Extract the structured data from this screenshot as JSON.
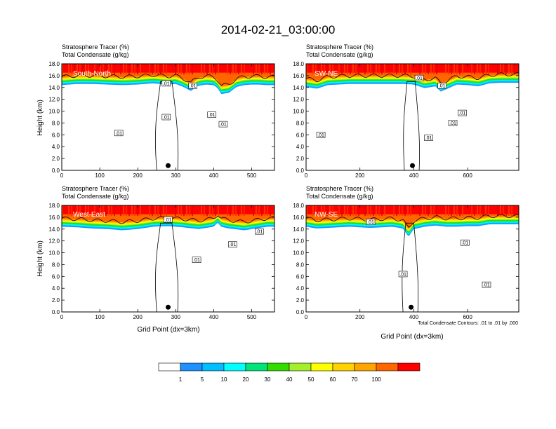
{
  "title": "2014-02-21_03:00:00",
  "chart_data": [
    {
      "type": "heatmap",
      "panel": "South-North",
      "subtitle_line1": "Stratosphere Tracer   (%)",
      "subtitle_line2": "Total Condensate   (g/kg)",
      "ylabel": "Height (km)",
      "xlabel": "",
      "xlim": [
        0,
        560
      ],
      "ylim": [
        0,
        18
      ],
      "xticks": [
        0,
        100,
        200,
        300,
        400,
        500
      ],
      "yticks": [
        "0.0",
        "2.0",
        "4.0",
        "6.0",
        "8.0",
        "10.0",
        "12.0",
        "14.0",
        "16.0",
        "18.0"
      ],
      "marker_x": 280,
      "tracer_profile": {
        "x": [
          0,
          40,
          80,
          120,
          160,
          200,
          240,
          260,
          280,
          300,
          320,
          340,
          350,
          360,
          380,
          400,
          410,
          420,
          440,
          460,
          480,
          500,
          520,
          540,
          560
        ],
        "y": [
          14.9,
          15.1,
          15.1,
          15.0,
          14.9,
          15.0,
          15.2,
          15.1,
          15.0,
          15.1,
          14.6,
          13.9,
          14.4,
          14.8,
          15.0,
          14.9,
          14.4,
          13.4,
          13.6,
          14.6,
          14.9,
          15.0,
          15.0,
          14.9,
          14.9
        ]
      },
      "contour_labels": [
        {
          "x": 150,
          "y": 6.3,
          "text": ".01"
        },
        {
          "x": 275,
          "y": 14.7,
          "text": ".01"
        },
        {
          "x": 345,
          "y": 14.3,
          "text": ".01"
        },
        {
          "x": 275,
          "y": 9.0,
          "text": ".01"
        },
        {
          "x": 395,
          "y": 9.4,
          "text": ".01"
        },
        {
          "x": 425,
          "y": 7.8,
          "text": ".01"
        }
      ]
    },
    {
      "type": "heatmap",
      "panel": "SW-NE",
      "subtitle_line1": "Stratosphere Tracer   (%)",
      "subtitle_line2": "Total Condensate   (g/kg)",
      "ylabel": "",
      "xlabel": "",
      "xlim": [
        0,
        790
      ],
      "ylim": [
        0,
        18
      ],
      "xticks": [
        0,
        200,
        400,
        600
      ],
      "yticks": [
        "0.0",
        "2.0",
        "4.0",
        "6.0",
        "8.0",
        "10.0",
        "12.0",
        "14.0",
        "16.0",
        "18.0"
      ],
      "marker_x": 395,
      "tracer_profile": {
        "x": [
          0,
          40,
          80,
          160,
          240,
          320,
          360,
          400,
          440,
          480,
          500,
          520,
          560,
          600,
          640,
          680,
          720,
          760,
          790
        ],
        "y": [
          14.6,
          14.3,
          14.9,
          15.1,
          15.1,
          15.1,
          15.1,
          15.0,
          14.4,
          14.7,
          13.8,
          14.2,
          15.0,
          14.9,
          14.7,
          15.2,
          15.3,
          15.3,
          15.3
        ]
      },
      "contour_labels": [
        {
          "x": 420,
          "y": 15.6,
          "text": ".01"
        },
        {
          "x": 505,
          "y": 14.3,
          "text": ".01"
        },
        {
          "x": 55,
          "y": 6.0,
          "text": ".01"
        },
        {
          "x": 455,
          "y": 5.5,
          "text": ".01"
        },
        {
          "x": 545,
          "y": 8.0,
          "text": ".01"
        },
        {
          "x": 580,
          "y": 9.7,
          "text": ".01"
        }
      ]
    },
    {
      "type": "heatmap",
      "panel": "West-East",
      "subtitle_line1": "Stratosphere Tracer   (%)",
      "subtitle_line2": "Total Condensate   (g/kg)",
      "ylabel": "Height (km)",
      "xlabel": "Grid Point (dx=3km)",
      "xlim": [
        0,
        560
      ],
      "ylim": [
        0,
        18
      ],
      "xticks": [
        0,
        100,
        200,
        300,
        400,
        500
      ],
      "yticks": [
        "0.0",
        "2.0",
        "4.0",
        "6.0",
        "8.0",
        "10.0",
        "12.0",
        "14.0",
        "16.0",
        "18.0"
      ],
      "marker_x": 280,
      "tracer_profile": {
        "x": [
          0,
          40,
          80,
          120,
          160,
          200,
          240,
          280,
          320,
          360,
          400,
          410,
          420,
          440,
          480,
          520,
          540,
          560
        ],
        "y": [
          14.9,
          14.8,
          14.6,
          14.5,
          14.3,
          14.5,
          14.9,
          15.0,
          14.8,
          14.5,
          14.9,
          15.6,
          14.9,
          14.6,
          14.3,
          14.7,
          14.9,
          14.9
        ]
      },
      "contour_labels": [
        {
          "x": 280,
          "y": 15.6,
          "text": ".01"
        },
        {
          "x": 520,
          "y": 13.6,
          "text": ".01"
        },
        {
          "x": 450,
          "y": 11.4,
          "text": ".01"
        },
        {
          "x": 355,
          "y": 8.8,
          "text": ".01"
        }
      ]
    },
    {
      "type": "heatmap",
      "panel": "NW-SE",
      "subtitle_line1": "Stratosphere Tracer   (%)",
      "subtitle_line2": "Total Condensate   (g/kg)",
      "ylabel": "",
      "xlabel": "Grid Point (dx=3km)",
      "xlim": [
        0,
        790
      ],
      "ylim": [
        0,
        18
      ],
      "xticks": [
        0,
        200,
        400,
        600
      ],
      "yticks": [
        "0.0",
        "2.0",
        "4.0",
        "6.0",
        "8.0",
        "10.0",
        "12.0",
        "14.0",
        "16.0",
        "18.0"
      ],
      "marker_x": 390,
      "tracer_profile": {
        "x": [
          0,
          40,
          80,
          120,
          160,
          200,
          240,
          280,
          320,
          360,
          380,
          400,
          440,
          480,
          520,
          560,
          600,
          640,
          680,
          720,
          760,
          790
        ],
        "y": [
          14.9,
          14.6,
          14.7,
          14.8,
          14.9,
          14.8,
          14.7,
          14.8,
          14.9,
          14.6,
          13.2,
          14.5,
          14.9,
          15.1,
          14.9,
          14.9,
          15.0,
          15.0,
          15.3,
          15.3,
          15.3,
          15.3
        ]
      },
      "contour_labels": [
        {
          "x": 240,
          "y": 15.2,
          "text": ".01"
        },
        {
          "x": 360,
          "y": 6.4,
          "text": ".01"
        },
        {
          "x": 590,
          "y": 11.7,
          "text": ".01"
        },
        {
          "x": 670,
          "y": 4.6,
          "text": ".01"
        }
      ]
    }
  ],
  "legend": {
    "bins": [
      "1",
      "5",
      "10",
      "20",
      "30",
      "40",
      "50",
      "60",
      "70",
      "100"
    ],
    "colors": [
      "#ffffff",
      "#1e90ff",
      "#00bfff",
      "#00ffff",
      "#00e57a",
      "#33dd00",
      "#a5f02e",
      "#ffff00",
      "#ffd200",
      "#ffa500",
      "#ff6600",
      "#ff0000"
    ]
  },
  "contour_note": "Total Condensate Contours: .01 to .01 by .000"
}
